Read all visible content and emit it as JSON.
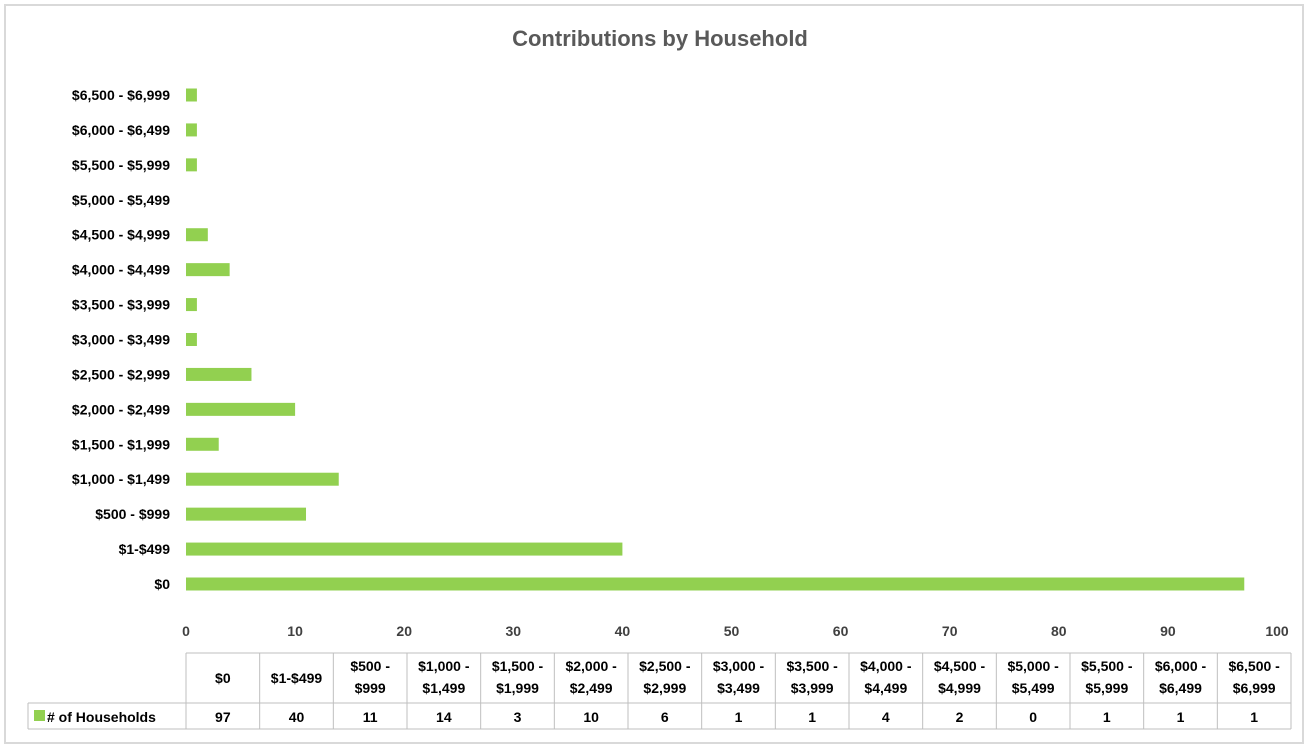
{
  "chart_data": {
    "type": "bar",
    "orientation": "horizontal",
    "title": "Contributions by Household",
    "categories": [
      "$0",
      "$1-$499",
      "$500 - $999",
      "$1,000 - $1,499",
      "$1,500 - $1,999",
      "$2,000 - $2,499",
      "$2,500 - $2,999",
      "$3,000 - $3,499",
      "$3,500 - $3,999",
      "$4,000 - $4,499",
      "$4,500 - $4,999",
      "$5,000 - $5,499",
      "$5,500 - $5,999",
      "$6,000 - $6,499",
      "$6,500 - $6,999"
    ],
    "table_header_lines": [
      [
        "$0"
      ],
      [
        "$1-$499"
      ],
      [
        "$500 -",
        "$999"
      ],
      [
        "$1,000 -",
        "$1,499"
      ],
      [
        "$1,500 -",
        "$1,999"
      ],
      [
        "$2,000 -",
        "$2,499"
      ],
      [
        "$2,500 -",
        "$2,999"
      ],
      [
        "$3,000 -",
        "$3,499"
      ],
      [
        "$3,500 -",
        "$3,999"
      ],
      [
        "$4,000 -",
        "$4,499"
      ],
      [
        "$4,500 -",
        "$4,999"
      ],
      [
        "$5,000 -",
        "$5,499"
      ],
      [
        "$5,500 -",
        "$5,999"
      ],
      [
        "$6,000 -",
        "$6,499"
      ],
      [
        "$6,500 -",
        "$6,999"
      ]
    ],
    "series": [
      {
        "name": "# of Households",
        "values": [
          97,
          40,
          11,
          14,
          3,
          10,
          6,
          1,
          1,
          4,
          2,
          0,
          1,
          1,
          1
        ],
        "color": "#92d050"
      }
    ],
    "xlim": [
      0,
      100
    ],
    "xticks": [
      0,
      10,
      20,
      30,
      40,
      50,
      60,
      70,
      80,
      90,
      100
    ],
    "grid": false,
    "legend": "data-table",
    "data_table": true
  }
}
